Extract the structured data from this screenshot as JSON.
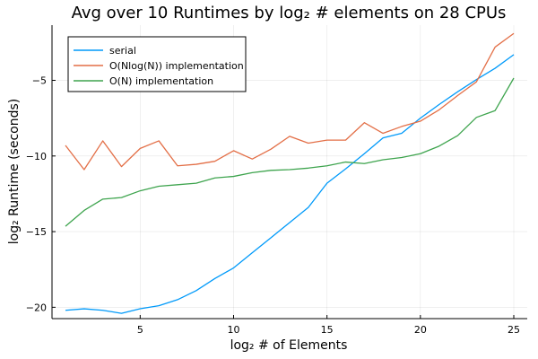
{
  "chart_data": {
    "type": "line",
    "title": "Avg over 10 Runtimes by log₂ # elements on 28 CPUs",
    "xlabel": "log₂ # of Elements",
    "ylabel": "log₂ Runtime (seconds)",
    "xlim": [
      0.28,
      25.72
    ],
    "ylim": [
      -20.75,
      -1.35
    ],
    "x_ticks": [
      5,
      10,
      15,
      20,
      25
    ],
    "y_ticks": [
      -20,
      -15,
      -10,
      -5
    ],
    "grid": true,
    "legend_position": "top-left",
    "x": [
      1,
      2,
      3,
      4,
      5,
      6,
      7,
      8,
      9,
      10,
      11,
      12,
      13,
      14,
      15,
      16,
      17,
      18,
      19,
      20,
      21,
      22,
      23,
      24,
      25
    ],
    "series": [
      {
        "name": "serial",
        "color": "#009AFA",
        "values": [
          -20.2,
          -20.1,
          -20.2,
          -20.4,
          -20.1,
          -19.9,
          -19.5,
          -18.9,
          -18.1,
          -17.4,
          -16.4,
          -15.4,
          -14.4,
          -13.4,
          -11.8,
          -10.85,
          -9.85,
          -8.8,
          -8.5,
          -7.5,
          -6.6,
          -5.75,
          -4.95,
          -4.2,
          -3.3
        ]
      },
      {
        "name": "O(Nlog(N)) implementation",
        "color": "#E36F47",
        "values": [
          -9.3,
          -10.9,
          -9.0,
          -10.7,
          -9.5,
          -9.0,
          -10.65,
          -10.55,
          -10.35,
          -9.65,
          -10.2,
          -9.55,
          -8.7,
          -9.15,
          -8.95,
          -8.95,
          -7.8,
          -8.5,
          -8.05,
          -7.7,
          -6.95,
          -6.0,
          -5.1,
          -2.8,
          -1.9
        ]
      },
      {
        "name": "O(N) implementation",
        "color": "#3EA44E",
        "values": [
          -14.65,
          -13.6,
          -12.85,
          -12.75,
          -12.3,
          -12.0,
          -11.9,
          -11.8,
          -11.45,
          -11.35,
          -11.1,
          -10.95,
          -10.9,
          -10.8,
          -10.65,
          -10.4,
          -10.5,
          -10.25,
          -10.1,
          -9.85,
          -9.35,
          -8.65,
          -7.45,
          -7.0,
          -4.85
        ]
      }
    ]
  }
}
